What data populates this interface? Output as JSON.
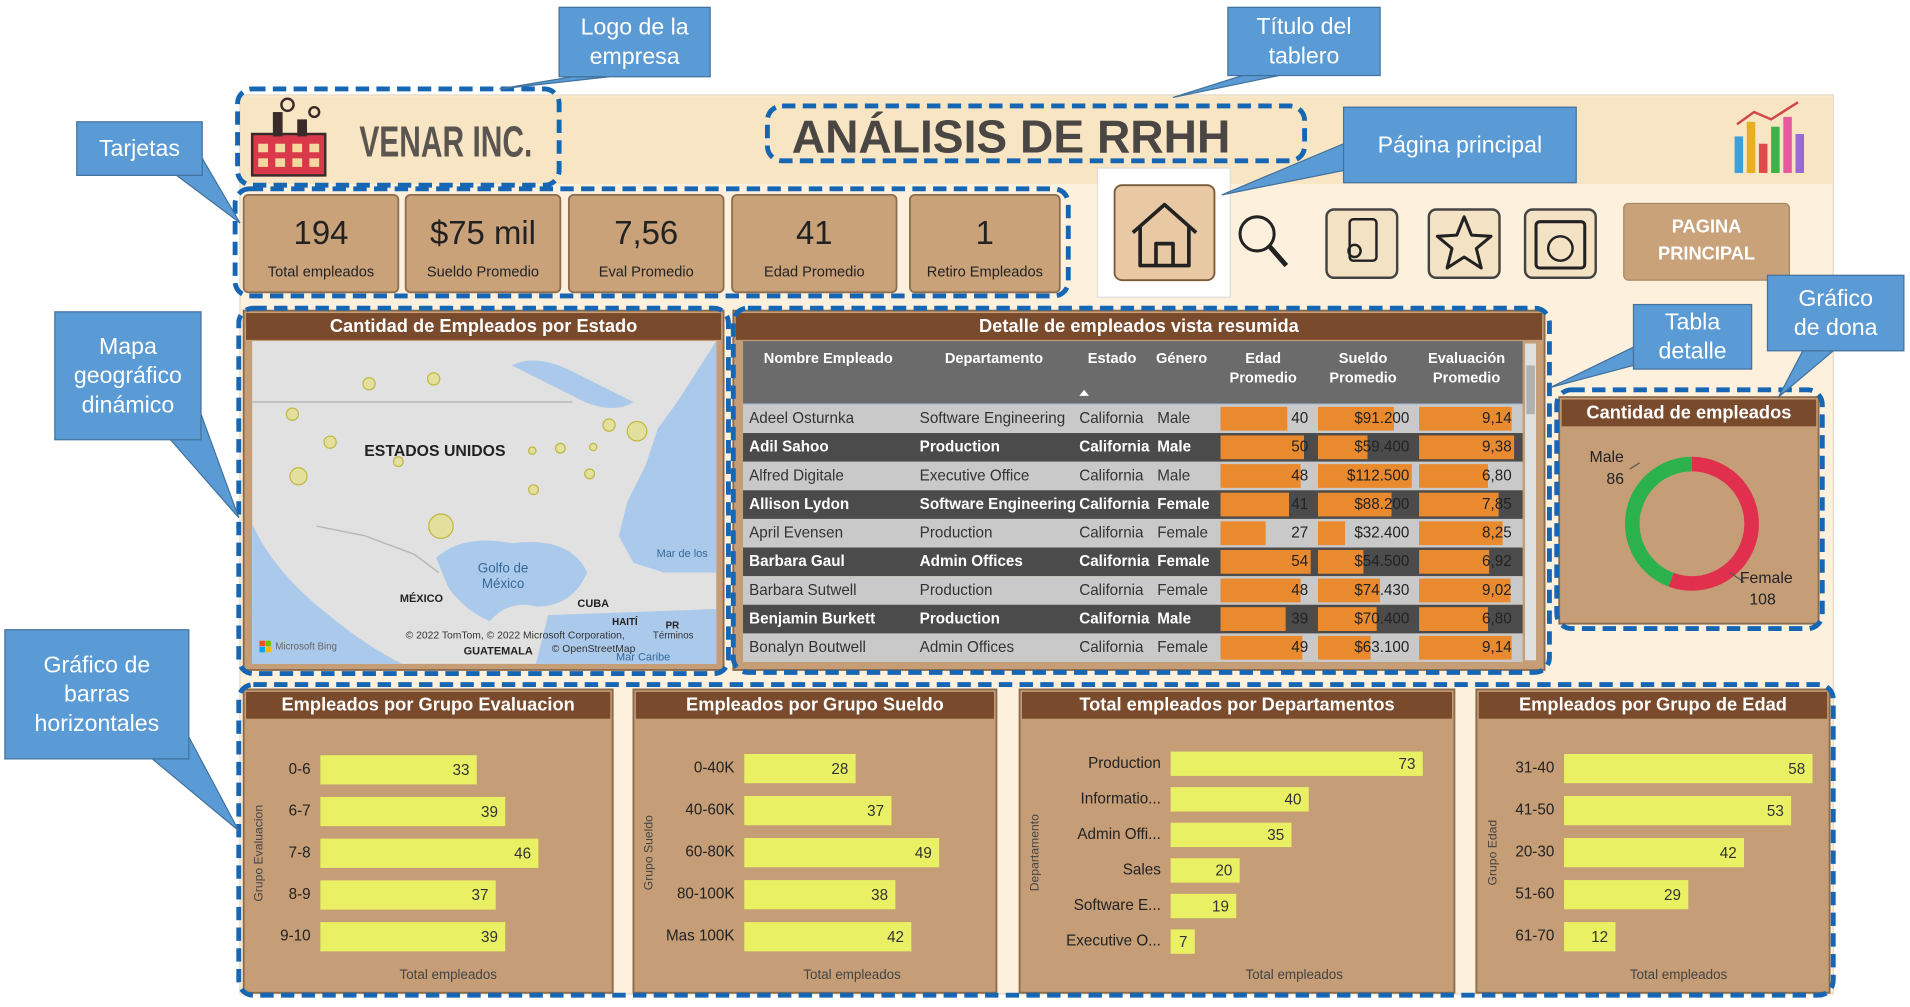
{
  "annotations": [
    {
      "lines": [
        "Logo de la",
        "empresa"
      ]
    },
    {
      "lines": [
        "Título del",
        "tablero"
      ]
    },
    {
      "lines": [
        "Tarjetas"
      ]
    },
    {
      "lines": [
        "Página principal"
      ]
    },
    {
      "lines": [
        "Mapa",
        "geográfico",
        "dinámico"
      ]
    },
    {
      "lines": [
        "Tabla",
        "detalle"
      ]
    },
    {
      "lines": [
        "Gráfico",
        "de dona"
      ]
    },
    {
      "lines": [
        "Gráfico de",
        "barras",
        "horizontales"
      ]
    }
  ],
  "header": {
    "company": "VENAR INC.",
    "title": "ANÁLISIS DE RRHH"
  },
  "cards": [
    {
      "value": "194",
      "label": "Total empleados"
    },
    {
      "value": "$75 mil",
      "label": "Sueldo Promedio"
    },
    {
      "value": "7,56",
      "label": "Eval Promedio"
    },
    {
      "value": "41",
      "label": "Edad Promedio"
    },
    {
      "value": "1",
      "label": "Retiro Empleados"
    }
  ],
  "nav": {
    "button": [
      "PAGINA",
      "PRINCIPAL"
    ]
  },
  "map": {
    "title": "Cantidad de Empleados por Estado",
    "labels": [
      "ESTADOS UNIDOS",
      "MÉXICO",
      "Golfo de",
      "México",
      "CUBA",
      "HAITÍ",
      "PR",
      "Mar de los",
      "Mar Caribe",
      "GUATEMALA",
      "Microsoft Bing",
      "© 2022 TomTom, © 2022 Microsoft Corporation,",
      "© OpenStreetMap",
      "Términos"
    ]
  },
  "table": {
    "title": "Detalle de empleados vista resumida",
    "columns": [
      [
        "Nombre Empleado"
      ],
      [
        "Departamento"
      ],
      [
        "Estado"
      ],
      [
        "Género"
      ],
      [
        "Edad",
        "Promedio"
      ],
      [
        "Sueldo",
        "Promedio"
      ],
      [
        "Evaluación",
        "Promedio"
      ]
    ],
    "rows": [
      [
        "Adeel Osturnka",
        "Software Engineering",
        "California",
        "Male",
        40,
        {
          "value": 91200,
          "label": "$91.200"
        },
        {
          "value": 9.14,
          "label": "9,14"
        }
      ],
      [
        "Adil Sahoo",
        "Production",
        "California",
        "Male",
        50,
        {
          "value": 59400,
          "label": "$59.400"
        },
        {
          "value": 9.38,
          "label": "9,38"
        }
      ],
      [
        "Alfred Digitale",
        "Executive Office",
        "California",
        "Male",
        48,
        {
          "value": 112500,
          "label": "$112.500"
        },
        {
          "value": 6.8,
          "label": "6,80"
        }
      ],
      [
        "Allison Lydon",
        "Software Engineering",
        "California",
        "Female",
        41,
        {
          "value": 88200,
          "label": "$88.200"
        },
        {
          "value": 7.85,
          "label": "7,85"
        }
      ],
      [
        "April Evensen",
        "Production",
        "California",
        "Female",
        27,
        {
          "value": 32400,
          "label": "$32.400"
        },
        {
          "value": 8.25,
          "label": "8,25"
        }
      ],
      [
        "Barbara Gaul",
        "Admin Offices",
        "California",
        "Female",
        54,
        {
          "value": 54500,
          "label": "$54.500"
        },
        {
          "value": 6.92,
          "label": "6,92"
        }
      ],
      [
        "Barbara Sutwell",
        "Production",
        "California",
        "Female",
        48,
        {
          "value": 74430,
          "label": "$74.430"
        },
        {
          "value": 9.02,
          "label": "9,02"
        }
      ],
      [
        "Benjamin Burkett",
        "Production",
        "California",
        "Male",
        39,
        {
          "value": 70400,
          "label": "$70.400"
        },
        {
          "value": 6.8,
          "label": "6,80"
        }
      ],
      [
        "Bonalyn Boutwell",
        "Admin Offices",
        "California",
        "Female",
        49,
        {
          "value": 63100,
          "label": "$63.100"
        },
        {
          "value": 9.14,
          "label": "9,14"
        }
      ]
    ]
  },
  "chart_data": [
    {
      "type": "donut",
      "title": "Cantidad de empleados",
      "categories": [
        "Male",
        "Female"
      ],
      "values": [
        86,
        108
      ],
      "colors": [
        "#2bb24c",
        "#e0304e"
      ]
    },
    {
      "type": "hbar",
      "title": "Empleados por Grupo Evaluacion",
      "y_label": "Grupo Evaluacion",
      "x_label": "Total empleados",
      "categories": [
        "0-6",
        "6-7",
        "7-8",
        "8-9",
        "9-10"
      ],
      "values": [
        33,
        39,
        46,
        37,
        39
      ],
      "color": "#e9f064"
    },
    {
      "type": "hbar",
      "title": "Empleados por Grupo Sueldo",
      "y_label": "Grupo Sueldo",
      "x_label": "Total empleados",
      "categories": [
        "0-40K",
        "40-60K",
        "60-80K",
        "80-100K",
        "Mas 100K"
      ],
      "values": [
        28,
        37,
        49,
        38,
        42
      ],
      "color": "#e9f064"
    },
    {
      "type": "hbar",
      "title": "Total empleados por Departamentos",
      "y_label": "Departamento",
      "x_label": "Total empleados",
      "categories": [
        "Production",
        "Informatio...",
        "Admin Offi...",
        "Sales",
        "Software E...",
        "Executive O..."
      ],
      "values": [
        73,
        40,
        35,
        20,
        19,
        7
      ],
      "color": "#e9f064"
    },
    {
      "type": "hbar",
      "title": "Empleados por Grupo de Edad",
      "y_label": "Grupo Edad",
      "x_label": "Total empleados",
      "categories": [
        "31-40",
        "41-50",
        "20-30",
        "51-60",
        "61-70"
      ],
      "values": [
        58,
        53,
        42,
        29,
        12
      ],
      "color": "#e9f064"
    }
  ]
}
